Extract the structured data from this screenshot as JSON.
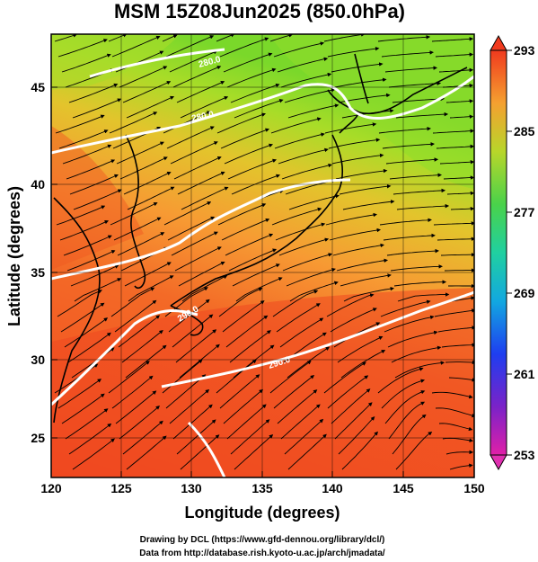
{
  "title": "MSM 15Z08Jun2025 (850.0hPa)",
  "xlabel": "Longitude (degrees)",
  "ylabel": "Latitude  (degrees)",
  "x_ticks": [
    "120",
    "125",
    "130",
    "135",
    "140",
    "145",
    "150"
  ],
  "y_ticks": [
    "25",
    "30",
    "35",
    "40",
    "45"
  ],
  "colorbar_ticks": [
    "293",
    "285",
    "277",
    "269",
    "261",
    "253"
  ],
  "contour_labels": [
    "280.0",
    "280.0",
    "290.0",
    "290.0"
  ],
  "credit_line1": "Drawing by DCL (https://www.gfd-dennou.org/library/dcl/)",
  "credit_line2": "Data from http://database.rish.kyoto-u.ac.jp/arch/jmadata/",
  "colors": {
    "cold": "#9be027",
    "warm": "#f7a035",
    "hot": "#f0461e",
    "contour": "#ffffff",
    "coast": "#000000"
  },
  "chart_data": {
    "type": "heatmap",
    "title": "MSM 15Z08Jun2025 (850.0hPa)",
    "xlabel": "Longitude (degrees)",
    "ylabel": "Latitude  (degrees)",
    "xlim": [
      120,
      150
    ],
    "ylim": [
      22.5,
      47.5
    ],
    "colorbar": {
      "min": 253,
      "max": 293,
      "ticks": [
        293,
        285,
        277,
        269,
        261,
        253
      ]
    },
    "contour_levels": [
      280.0,
      290.0
    ],
    "overlay": "streamlines",
    "grid": true
  }
}
